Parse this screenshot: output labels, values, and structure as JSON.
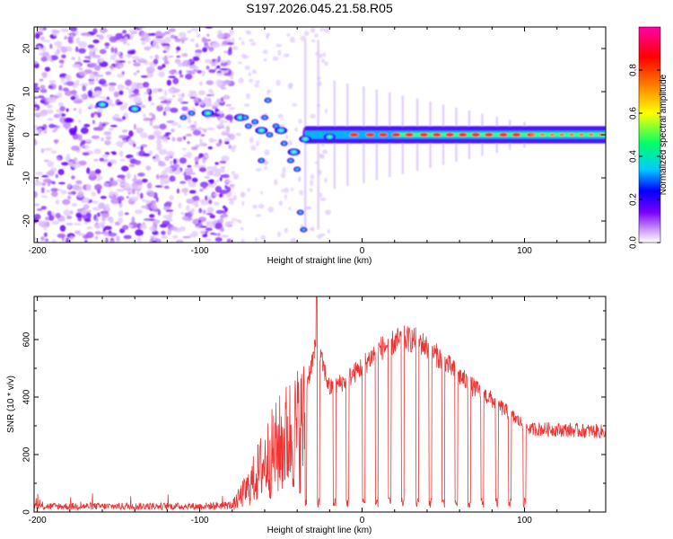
{
  "title": "S197.2026.045.21.58.R05",
  "chart_data": [
    {
      "type": "heatmap",
      "xlabel": "Height of straight line (km)",
      "ylabel": "Frequency (Hz)",
      "xlim": [
        -202,
        150
      ],
      "ylim": [
        -25,
        25
      ],
      "xticks": [
        -200,
        -100,
        0,
        100
      ],
      "yticks": [
        -20,
        -10,
        0,
        10,
        20
      ],
      "xtick_labels": [
        "-200",
        "-100",
        "0",
        "100"
      ],
      "ytick_labels": [
        "-20",
        "-10",
        "0",
        "10",
        "20"
      ],
      "colorbar": {
        "label": "Normalized spectral amplitude",
        "range": [
          0,
          1
        ],
        "ticks": [
          0.0,
          0.2,
          0.4,
          0.6,
          0.8
        ],
        "tick_labels": [
          "0.0",
          "0.2",
          "0.4",
          "0.6",
          "0.8"
        ],
        "colors": [
          "#ffffff",
          "#cc99ff",
          "#7a00ff",
          "#0000ff",
          "#00ccff",
          "#00ff66",
          "#ffff00",
          "#ff8800",
          "#ff0000",
          "#ff00aa"
        ]
      },
      "ridge": [
        {
          "x": -160,
          "y": 7
        },
        {
          "x": -140,
          "y": 6
        },
        {
          "x": -95,
          "y": 5
        },
        {
          "x": -75,
          "y": 4
        },
        {
          "x": -62,
          "y": 1
        },
        {
          "x": -50,
          "y": 1
        },
        {
          "x": -42,
          "y": -4
        },
        {
          "x": -35,
          "y": -1
        },
        {
          "x": -20,
          "y": -0.5
        },
        {
          "x": 0,
          "y": 0
        },
        {
          "x": 50,
          "y": 0
        },
        {
          "x": 100,
          "y": 0
        },
        {
          "x": 150,
          "y": 0
        }
      ]
    },
    {
      "type": "line",
      "xlabel": "Height of straight line (km)",
      "ylabel": "SNR (10 * v/v)",
      "xlim": [
        -202,
        150
      ],
      "ylim": [
        0,
        750
      ],
      "xticks": [
        -200,
        -100,
        0,
        100
      ],
      "yticks": [
        0,
        200,
        400,
        600
      ],
      "xtick_labels": [
        "-200",
        "-100",
        "0",
        "100"
      ],
      "ytick_labels": [
        "0",
        "200",
        "400",
        "600"
      ],
      "series": [
        {
          "name": "SNR",
          "color": "#ee3333",
          "envelope": [
            {
              "x": -202,
              "y": 25
            },
            {
              "x": -150,
              "y": 25
            },
            {
              "x": -100,
              "y": 25
            },
            {
              "x": -80,
              "y": 30
            },
            {
              "x": -70,
              "y": 120
            },
            {
              "x": -60,
              "y": 250
            },
            {
              "x": -45,
              "y": 380
            },
            {
              "x": -35,
              "y": 440
            },
            {
              "x": -28,
              "y": 600
            },
            {
              "x": -20,
              "y": 440
            },
            {
              "x": -10,
              "y": 470
            },
            {
              "x": 0,
              "y": 520
            },
            {
              "x": 10,
              "y": 580
            },
            {
              "x": 25,
              "y": 620
            },
            {
              "x": 35,
              "y": 610
            },
            {
              "x": 50,
              "y": 540
            },
            {
              "x": 65,
              "y": 460
            },
            {
              "x": 80,
              "y": 400
            },
            {
              "x": 95,
              "y": 330
            },
            {
              "x": 105,
              "y": 290
            },
            {
              "x": 150,
              "y": 280
            }
          ],
          "dips_x": [
            -35,
            -27,
            -17,
            -9,
            1,
            9,
            17,
            25,
            34,
            42,
            50,
            58,
            66,
            74,
            83,
            91,
            100
          ]
        }
      ]
    }
  ]
}
